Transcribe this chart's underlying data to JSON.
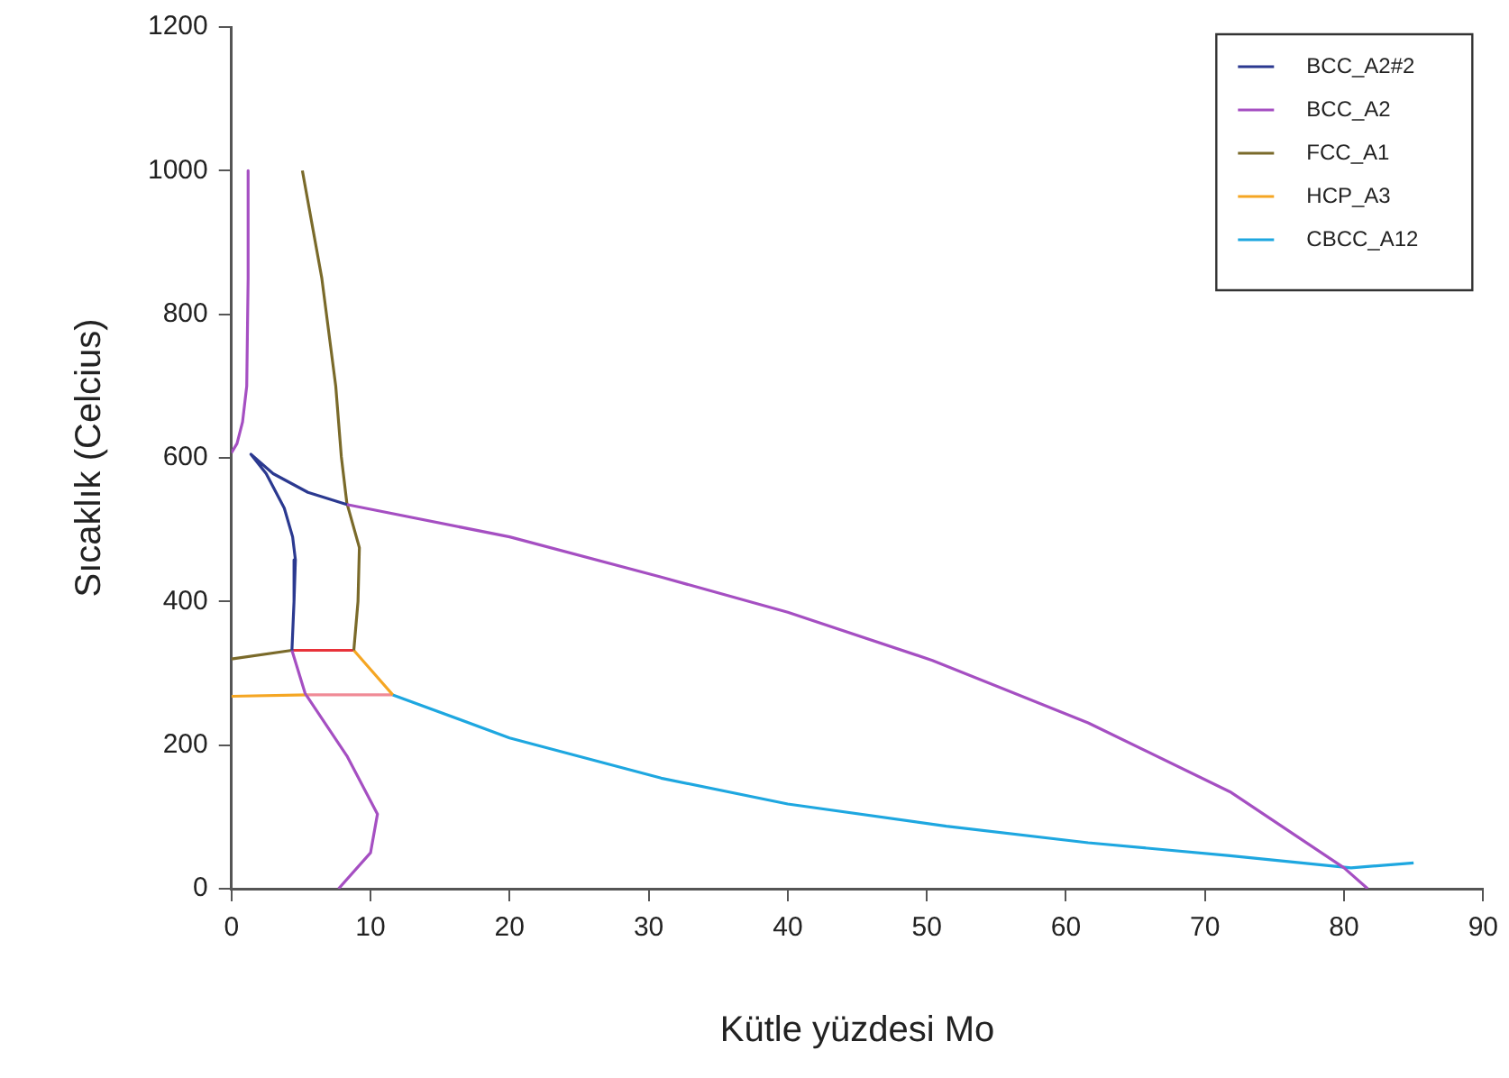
{
  "chart_data": {
    "type": "line",
    "xlabel": "Kütle yüzdesi Mo",
    "ylabel": "Sıcaklık (Celcius)",
    "xlim": [
      0,
      90
    ],
    "xticks": [
      0,
      10,
      20,
      30,
      40,
      50,
      60,
      70,
      80,
      90
    ],
    "ylim": [
      0,
      1200
    ],
    "yticks": [
      0,
      200,
      400,
      600,
      800,
      1000,
      1200
    ],
    "grid": false,
    "legend": "top right",
    "marker": "none",
    "line_style": "solid",
    "series": [
      {
        "name": "BCC_A2#2",
        "color": "#2b3990",
        "x": [
          8.3,
          5.5,
          3,
          1.4,
          2.5,
          3.8,
          4.4,
          4.6,
          4.5,
          4.35
        ],
        "values": [
          535,
          552,
          578,
          605,
          578,
          530,
          490,
          458,
          400,
          332
        ]
      },
      {
        "name": "BCC_A2",
        "color": "#a54fc2",
        "x": [
          1.2,
          1.2,
          1.1,
          0.8,
          0.4,
          0,
          null,
          8.3,
          20,
          30.9,
          40,
          50.4,
          61.6,
          71.8,
          80,
          81.7,
          null,
          4.35,
          5.3,
          8.3,
          10.5,
          10,
          7.7
        ],
        "values": [
          1000,
          850,
          700,
          650,
          620,
          607,
          null,
          535,
          490,
          434,
          385,
          318,
          231,
          135,
          29,
          0,
          null,
          332,
          272,
          185,
          104,
          50,
          0
        ]
      },
      {
        "name": "FCC_A1",
        "color": "#7a6a2a",
        "x": [
          5.1,
          6.5,
          7.5,
          7.9,
          8.3,
          9.2,
          9.1,
          8.8,
          null,
          0,
          4.35
        ],
        "values": [
          1000,
          850,
          700,
          602,
          537,
          475,
          400,
          332,
          null,
          320,
          332
        ]
      },
      {
        "name": "HCP_A3",
        "color": "#f5a623",
        "x": [
          0,
          5.5,
          null,
          8.8,
          11.6
        ],
        "values": [
          268,
          270,
          null,
          332,
          270
        ]
      },
      {
        "name": "CBCC_A12",
        "color": "#1ea7e0",
        "x": [
          11.6,
          20,
          30.9,
          40,
          51.4,
          61.6,
          71.8,
          80.5,
          85
        ],
        "values": [
          270,
          210,
          154,
          118,
          87,
          64,
          46,
          29,
          36
        ]
      },
      {
        "color": "#e8333a",
        "x": [
          4.35,
          8.8
        ],
        "values": [
          332,
          332
        ]
      },
      {
        "color": "#f08a96",
        "x": [
          5.5,
          11.6
        ],
        "values": [
          270,
          270
        ]
      }
    ]
  }
}
